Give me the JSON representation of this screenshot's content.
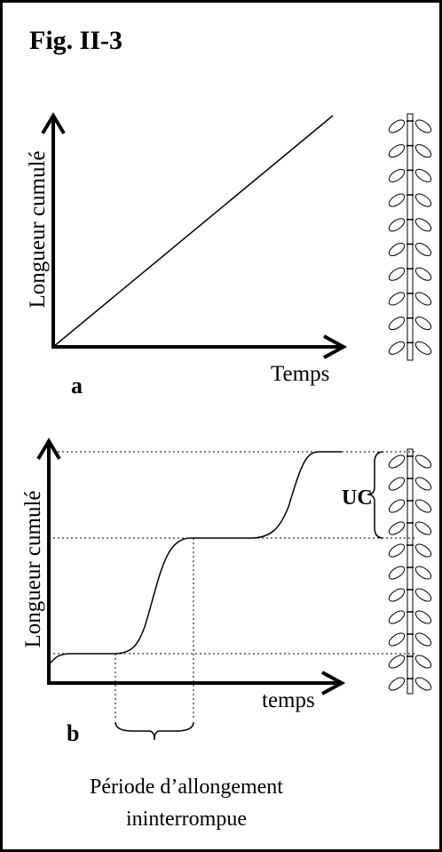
{
  "title": "Fig. II-3",
  "panel_a": {
    "y_label": "Longueur cumulé",
    "x_label": "Temps",
    "letter": "a"
  },
  "panel_b": {
    "y_label": "Longueur cumulé",
    "x_label": "temps",
    "letter": "b",
    "unit_label": "UC",
    "caption": [
      "Période d’allongement",
      "ininterrompue"
    ]
  }
}
